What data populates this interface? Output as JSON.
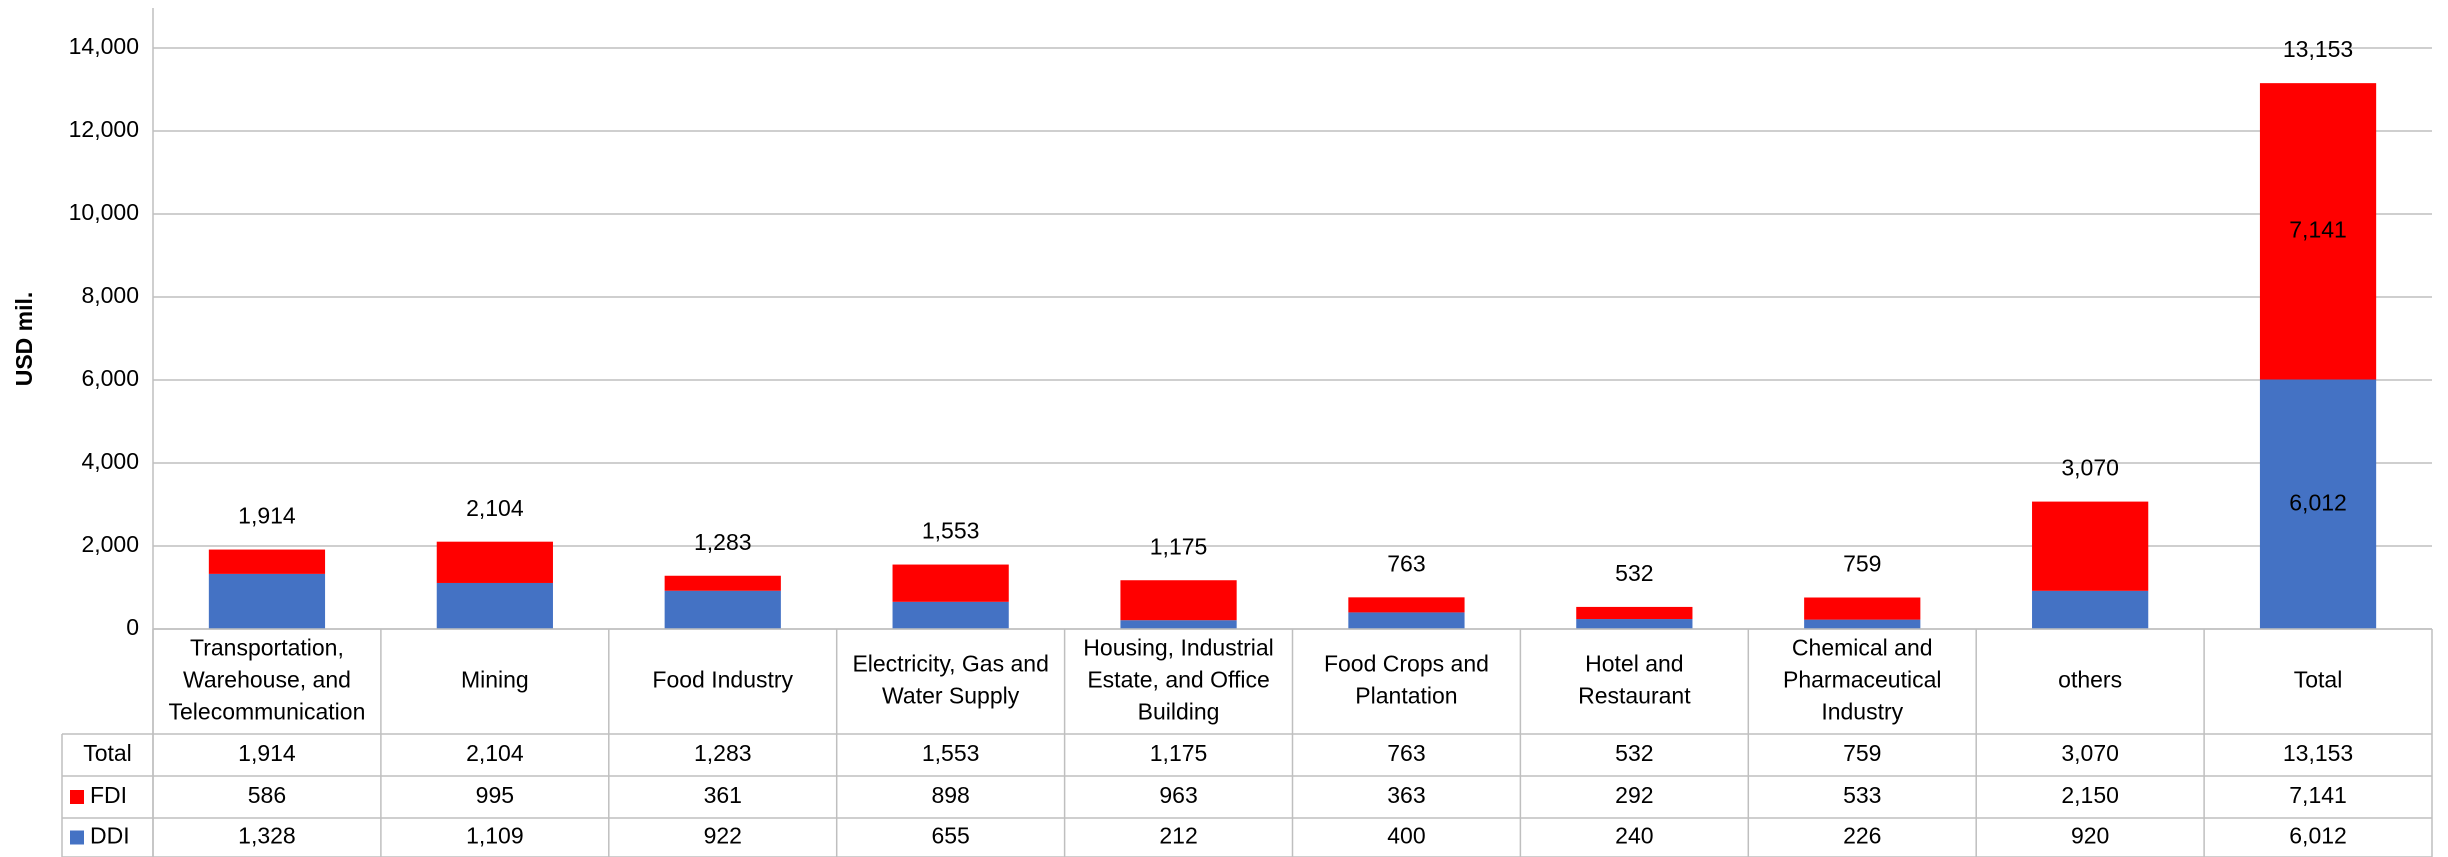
{
  "chart_data": {
    "type": "stacked_bar",
    "y_label": "USD mil.",
    "categories": [
      "Transportation, Warehouse, and Telecommunication",
      "Mining",
      "Food Industry",
      "Electricity, Gas and Water Supply",
      "Housing, Industrial Estate, and Office Building",
      "Food Crops and Plantation",
      "Hotel and Restaurant",
      "Chemical and Pharmaceutical Industry",
      "others",
      "Total"
    ],
    "series": [
      {
        "name": "DDI",
        "color": "#4472c4",
        "values": [
          1328,
          1109,
          922,
          655,
          212,
          400,
          240,
          226,
          920,
          6012
        ],
        "value_labels": [
          "1,328",
          "1,109",
          "922",
          "655",
          "212",
          "400",
          "240",
          "226",
          "920",
          "6,012"
        ]
      },
      {
        "name": "FDI",
        "color": "#ff0000",
        "values": [
          586,
          995,
          361,
          898,
          963,
          363,
          292,
          533,
          2150,
          7141
        ],
        "value_labels": [
          "586",
          "995",
          "361",
          "898",
          "963",
          "363",
          "292",
          "533",
          "2,150",
          "7,141"
        ]
      }
    ],
    "totals": {
      "name": "Total",
      "values": [
        1914,
        2104,
        1283,
        1553,
        1175,
        763,
        532,
        759,
        3070,
        13153
      ],
      "value_labels": [
        "1,914",
        "2,104",
        "1,283",
        "1,553",
        "1,175",
        "763",
        "532",
        "759",
        "3,070",
        "13,153"
      ]
    },
    "ylim": [
      0,
      14000
    ],
    "yticks": [
      0,
      {
        "value": 2000,
        "label": "2,000"
      },
      {
        "value": 4000,
        "label": "4,000"
      },
      {
        "value": 6000,
        "label": "6,000"
      },
      {
        "value": 8000,
        "label": "8,000"
      },
      {
        "value": 10000,
        "label": "10,000"
      },
      {
        "value": 12000,
        "label": "12,000"
      },
      {
        "value": 14000,
        "label": "14,000"
      }
    ],
    "grid": true
  }
}
